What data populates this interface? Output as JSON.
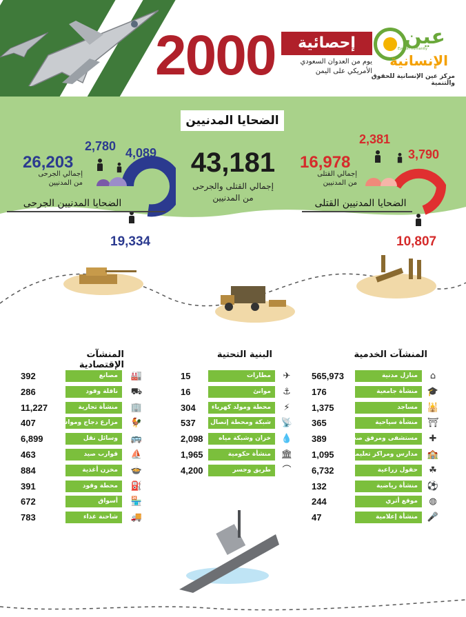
{
  "header": {
    "big_number": "2000",
    "stat_tag": "إحصائية",
    "subtitle_line1": "يوم من العدوان السعودي",
    "subtitle_line2": "الأمريكي على اليمن",
    "logo_ain": "عين",
    "logo_insaniya": "الإنسانية",
    "logo_small": "Eye on Humanity",
    "org_name": "مركز عين الإنسانية للحقوق والتنمية"
  },
  "victims": {
    "title": "الضحايا المدنيين",
    "total": {
      "value": "43,181",
      "label_line1": "إجمالي القتلى والجرحى",
      "label_line2": "من المدنيين"
    },
    "killed": {
      "title": "الضحايا المدنيين القتلى",
      "total": "16,978",
      "total_label_line1": "إجمالي القتلى",
      "total_label_line2": "من المدنيين",
      "women": "2,381",
      "children": "3,790",
      "men": "10,807"
    },
    "injured": {
      "title": "الضحايا المدنيين الجرحى",
      "total": "26,203",
      "total_label_line1": "إجمالي الجرحى",
      "total_label_line2": "من المدنيين",
      "women": "2,780",
      "children": "4,089",
      "men": "19,334"
    },
    "colors": {
      "killed": "#d52b2b",
      "injured": "#2b3a8f",
      "green_band": "#a9d28a"
    }
  },
  "tables": {
    "service": {
      "title": "المنشآت الخدمية",
      "rows": [
        {
          "label": "منازل مدنية",
          "value": "565,973",
          "icon": "house-icon",
          "glyph": "⌂"
        },
        {
          "label": "منشأة جامعية",
          "value": "176",
          "icon": "graduation-cap-icon",
          "glyph": "🎓"
        },
        {
          "label": "مساجد",
          "value": "1,375",
          "icon": "mosque-icon",
          "glyph": "🕌"
        },
        {
          "label": "منشأة سياحية",
          "value": "365",
          "icon": "tourism-icon",
          "glyph": "⛩"
        },
        {
          "label": "مستشفى ومرفق صحي",
          "value": "389",
          "icon": "hospital-icon",
          "glyph": "✚"
        },
        {
          "label": "مدارس ومراكز تعليمية",
          "value": "1,095",
          "icon": "school-icon",
          "glyph": "🏫"
        },
        {
          "label": "حقول زراعية",
          "value": "6,732",
          "icon": "farm-field-icon",
          "glyph": "☘"
        },
        {
          "label": "منشأة رياضية",
          "value": "132",
          "icon": "football-icon",
          "glyph": "⚽"
        },
        {
          "label": "موقع أثري",
          "value": "244",
          "icon": "archaeological-site-icon",
          "glyph": "◍"
        },
        {
          "label": "منشأة إعلامية",
          "value": "47",
          "icon": "microphone-icon",
          "glyph": "🎤"
        }
      ]
    },
    "infrastructure": {
      "title": "البنية التحتية",
      "rows": [
        {
          "label": "مطارات",
          "value": "15",
          "icon": "airport-icon",
          "glyph": "✈"
        },
        {
          "label": "موانئ",
          "value": "16",
          "icon": "port-icon",
          "glyph": "⚓"
        },
        {
          "label": "محطة ومولد كهرباء",
          "value": "304",
          "icon": "power-station-icon",
          "glyph": "⚡"
        },
        {
          "label": "شبكة ومحطة إتصال",
          "value": "537",
          "icon": "telecom-tower-icon",
          "glyph": "📡"
        },
        {
          "label": "خزان وشبكة مياه",
          "value": "2,098",
          "icon": "water-tank-icon",
          "glyph": "💧"
        },
        {
          "label": "منشأة حكومية",
          "value": "1,965",
          "icon": "government-building-icon",
          "glyph": "🏛"
        },
        {
          "label": "طريق وجسر",
          "value": "4,200",
          "icon": "bridge-icon",
          "glyph": "⌒"
        }
      ]
    },
    "economic": {
      "title": "المنشآت الإقتصادية",
      "rows": [
        {
          "label": "مصانع",
          "value": "392",
          "icon": "factory-icon",
          "glyph": "🏭"
        },
        {
          "label": "ناقلة وقود",
          "value": "286",
          "icon": "fuel-tanker-icon",
          "glyph": "⛟"
        },
        {
          "label": "منشأة تجارية",
          "value": "11,227",
          "icon": "commercial-building-icon",
          "glyph": "🏢"
        },
        {
          "label": "مزارع دجاج ومواشي",
          "value": "407",
          "icon": "chicken-icon",
          "glyph": "🐓"
        },
        {
          "label": "وسائل نقل",
          "value": "6,899",
          "icon": "bus-icon",
          "glyph": "🚌"
        },
        {
          "label": "قوارب صيد",
          "value": "463",
          "icon": "fishing-boat-icon",
          "glyph": "⛵"
        },
        {
          "label": "مخزن أغذية",
          "value": "884",
          "icon": "food-storage-icon",
          "glyph": "🍲"
        },
        {
          "label": "محطة وقود",
          "value": "391",
          "icon": "fuel-station-icon",
          "glyph": "⛽"
        },
        {
          "label": "أسواق",
          "value": "672",
          "icon": "market-icon",
          "glyph": "🏪"
        },
        {
          "label": "شاحنة غذاء",
          "value": "783",
          "icon": "food-truck-icon",
          "glyph": "🚚"
        }
      ]
    },
    "label_color": "#7bbf3c"
  }
}
